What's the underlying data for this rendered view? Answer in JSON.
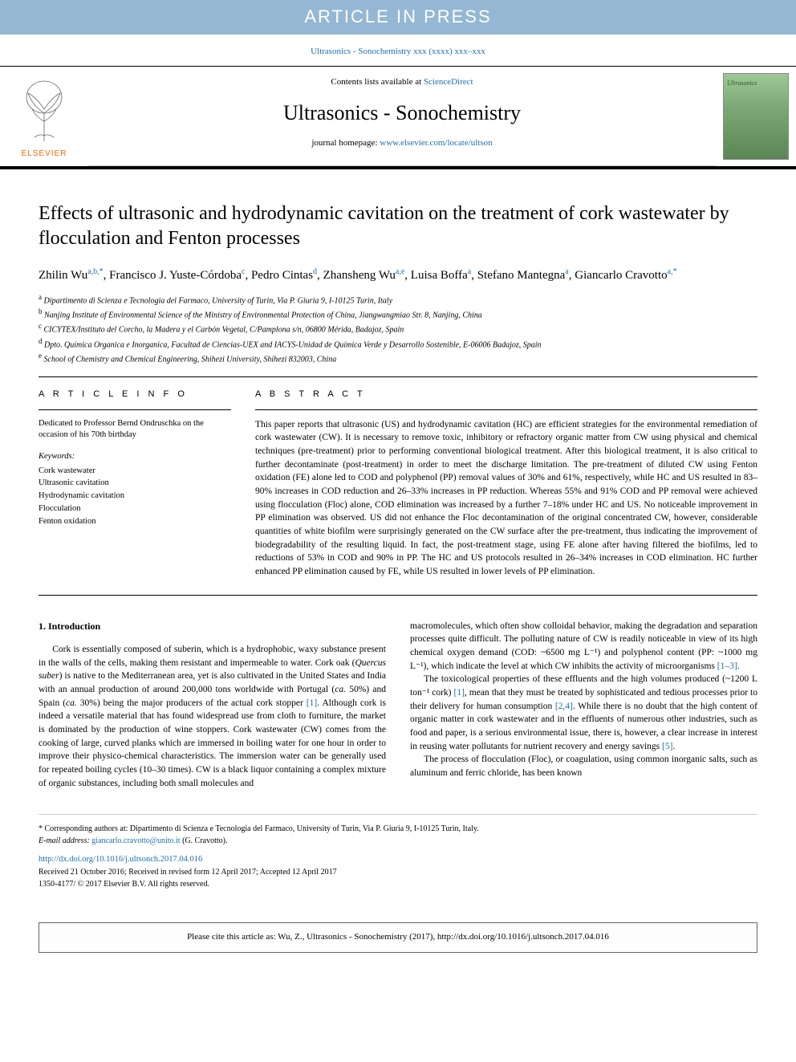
{
  "banner": "ARTICLE IN PRESS",
  "doi_top": "Ultrasonics - Sonochemistry xxx (xxxx) xxx–xxx",
  "header": {
    "contents_prefix": "Contents lists available at ",
    "contents_link": "ScienceDirect",
    "journal_name": "Ultrasonics - Sonochemistry",
    "homepage_prefix": "journal homepage: ",
    "homepage_link": "www.elsevier.com/locate/ultson",
    "publisher": "ELSEVIER",
    "cover_label": "Ultrasonics"
  },
  "title": "Effects of ultrasonic and hydrodynamic cavitation on the treatment of cork wastewater by flocculation and Fenton processes",
  "authors_html": "Zhilin Wu<sup>a,b,*</sup>, Francisco J. Yuste-Córdoba<sup>c</sup>, Pedro Cintas<sup>d</sup>, Zhansheng Wu<sup>a,e</sup>, Luisa Boffa<sup>a</sup>, Stefano Mantegna<sup>a</sup>, Giancarlo Cravotto<sup>a,*</sup>",
  "affiliations": [
    {
      "sup": "a",
      "text": "Dipartimento di Scienza e Tecnologia del Farmaco, University of Turin, Via P. Giuria 9, I-10125 Turin, Italy"
    },
    {
      "sup": "b",
      "text": "Nanjing Institute of Environmental Science of the Ministry of Environmental Protection of China, Jiangwangmiao Str. 8, Nanjing, China"
    },
    {
      "sup": "c",
      "text": "CICYTEX/Instituto del Corcho, la Madera y el Carbón Vegetal, C/Pamplona s/n, 06800 Mérida, Badajoz, Spain"
    },
    {
      "sup": "d",
      "text": "Dpto. Química Organica e Inorganica, Facultad de Ciencias-UEX and IACYS-Unidad de Química Verde y Desarrollo Sostenible, E-06006 Badajoz, Spain"
    },
    {
      "sup": "e",
      "text": "School of Chemistry and Chemical Engineering, Shihezi University, Shihezi 832003, China"
    }
  ],
  "info": {
    "heading": "A R T I C L E   I N F O",
    "dedication": "Dedicated to Professor Bernd Ondruschka on the occasion of his 70th birthday",
    "keywords_label": "Keywords:",
    "keywords": [
      "Cork wastewater",
      "Ultrasonic cavitation",
      "Hydrodynamic cavitation",
      "Flocculation",
      "Fenton oxidation"
    ]
  },
  "abstract": {
    "heading": "A B S T R A C T",
    "text": "This paper reports that ultrasonic (US) and hydrodynamic cavitation (HC) are efficient strategies for the environmental remediation of cork wastewater (CW). It is necessary to remove toxic, inhibitory or refractory organic matter from CW using physical and chemical techniques (pre-treatment) prior to performing conventional biological treatment. After this biological treatment, it is also critical to further decontaminate (post-treatment) in order to meet the discharge limitation. The pre-treatment of diluted CW using Fenton oxidation (FE) alone led to COD and polyphenol (PP) removal values of 30% and 61%, respectively, while HC and US resulted in 83–90% increases in COD reduction and 26–33% increases in PP reduction. Whereas 55% and 91% COD and PP removal were achieved using flocculation (Floc) alone, COD elimination was increased by a further 7–18% under HC and US. No noticeable improvement in PP elimination was observed. US did not enhance the Floc decontamination of the original concentrated CW, however, considerable quantities of white biofilm were surprisingly generated on the CW surface after the pre-treatment, thus indicating the improvement of biodegradability of the resulting liquid. In fact, the post-treatment stage, using FE alone after having filtered the biofilms, led to reductions of 53% in COD and 90% in PP. The HC and US protocols resulted in 26–34% increases in COD elimination. HC further enhanced PP elimination caused by FE, while US resulted in lower levels of PP elimination."
  },
  "introduction": {
    "heading": "1. Introduction",
    "col1_p1": "Cork is essentially composed of suberin, which is a hydrophobic, waxy substance present in the walls of the cells, making them resistant and impermeable to water. Cork oak (Quercus suber) is native to the Mediterranean area, yet is also cultivated in the United States and India with an annual production of around 200,000 tons worldwide with Portugal (ca. 50%) and Spain (ca. 30%) being the major producers of the actual cork stopper [1]. Although cork is indeed a versatile material that has found widespread use from cloth to furniture, the market is dominated by the production of wine stoppers. Cork wastewater (CW) comes from the cooking of large, curved planks which are immersed in boiling water for one hour in order to improve their physico-chemical characteristics. The immersion water can be generally used for repeated boiling cycles (10–30 times). CW is a black liquor containing a complex mixture of organic substances, including both small molecules and",
    "col2_p1": "macromolecules, which often show colloidal behavior, making the degradation and separation processes quite difficult. The polluting nature of CW is readily noticeable in view of its high chemical oxygen demand (COD: ~6500 mg L⁻¹) and polyphenol content (PP: ~1000 mg L⁻¹), which indicate the level at which CW inhibits the activity of microorganisms [1–3].",
    "col2_p2": "The toxicological properties of these effluents and the high volumes produced (~1200 L ton⁻¹ cork) [1], mean that they must be treated by sophisticated and tedious processes prior to their delivery for human consumption [2,4]. While there is no doubt that the high content of organic matter in cork wastewater and in the effluents of numerous other industries, such as food and paper, is a serious environmental issue, there is, however, a clear increase in interest in reusing water pollutants for nutrient recovery and energy savings [5].",
    "col2_p3": "The process of flocculation (Floc), or coagulation, using common inorganic salts, such as aluminum and ferric chloride, has been known"
  },
  "footer": {
    "corresponding": "* Corresponding authors at: Dipartimento di Scienza e Tecnologia del Farmaco, University of Turin, Via P. Giuria 9, I-10125 Turin, Italy.",
    "email_label": "E-mail address: ",
    "email": "giancarlo.cravotto@unito.it",
    "email_suffix": " (G. Cravotto).",
    "doi_link": "http://dx.doi.org/10.1016/j.ultsonch.2017.04.016",
    "received": "Received 21 October 2016; Received in revised form 12 April 2017; Accepted 12 April 2017",
    "issn": "1350-4177/ © 2017 Elsevier B.V. All rights reserved."
  },
  "cite": "Please cite this article as: Wu, Z., Ultrasonics - Sonochemistry (2017), http://dx.doi.org/10.1016/j.ultsonch.2017.04.016",
  "colors": {
    "banner_bg": "#94b8d4",
    "link": "#1a6fb0",
    "elsevier": "#ff6600"
  }
}
